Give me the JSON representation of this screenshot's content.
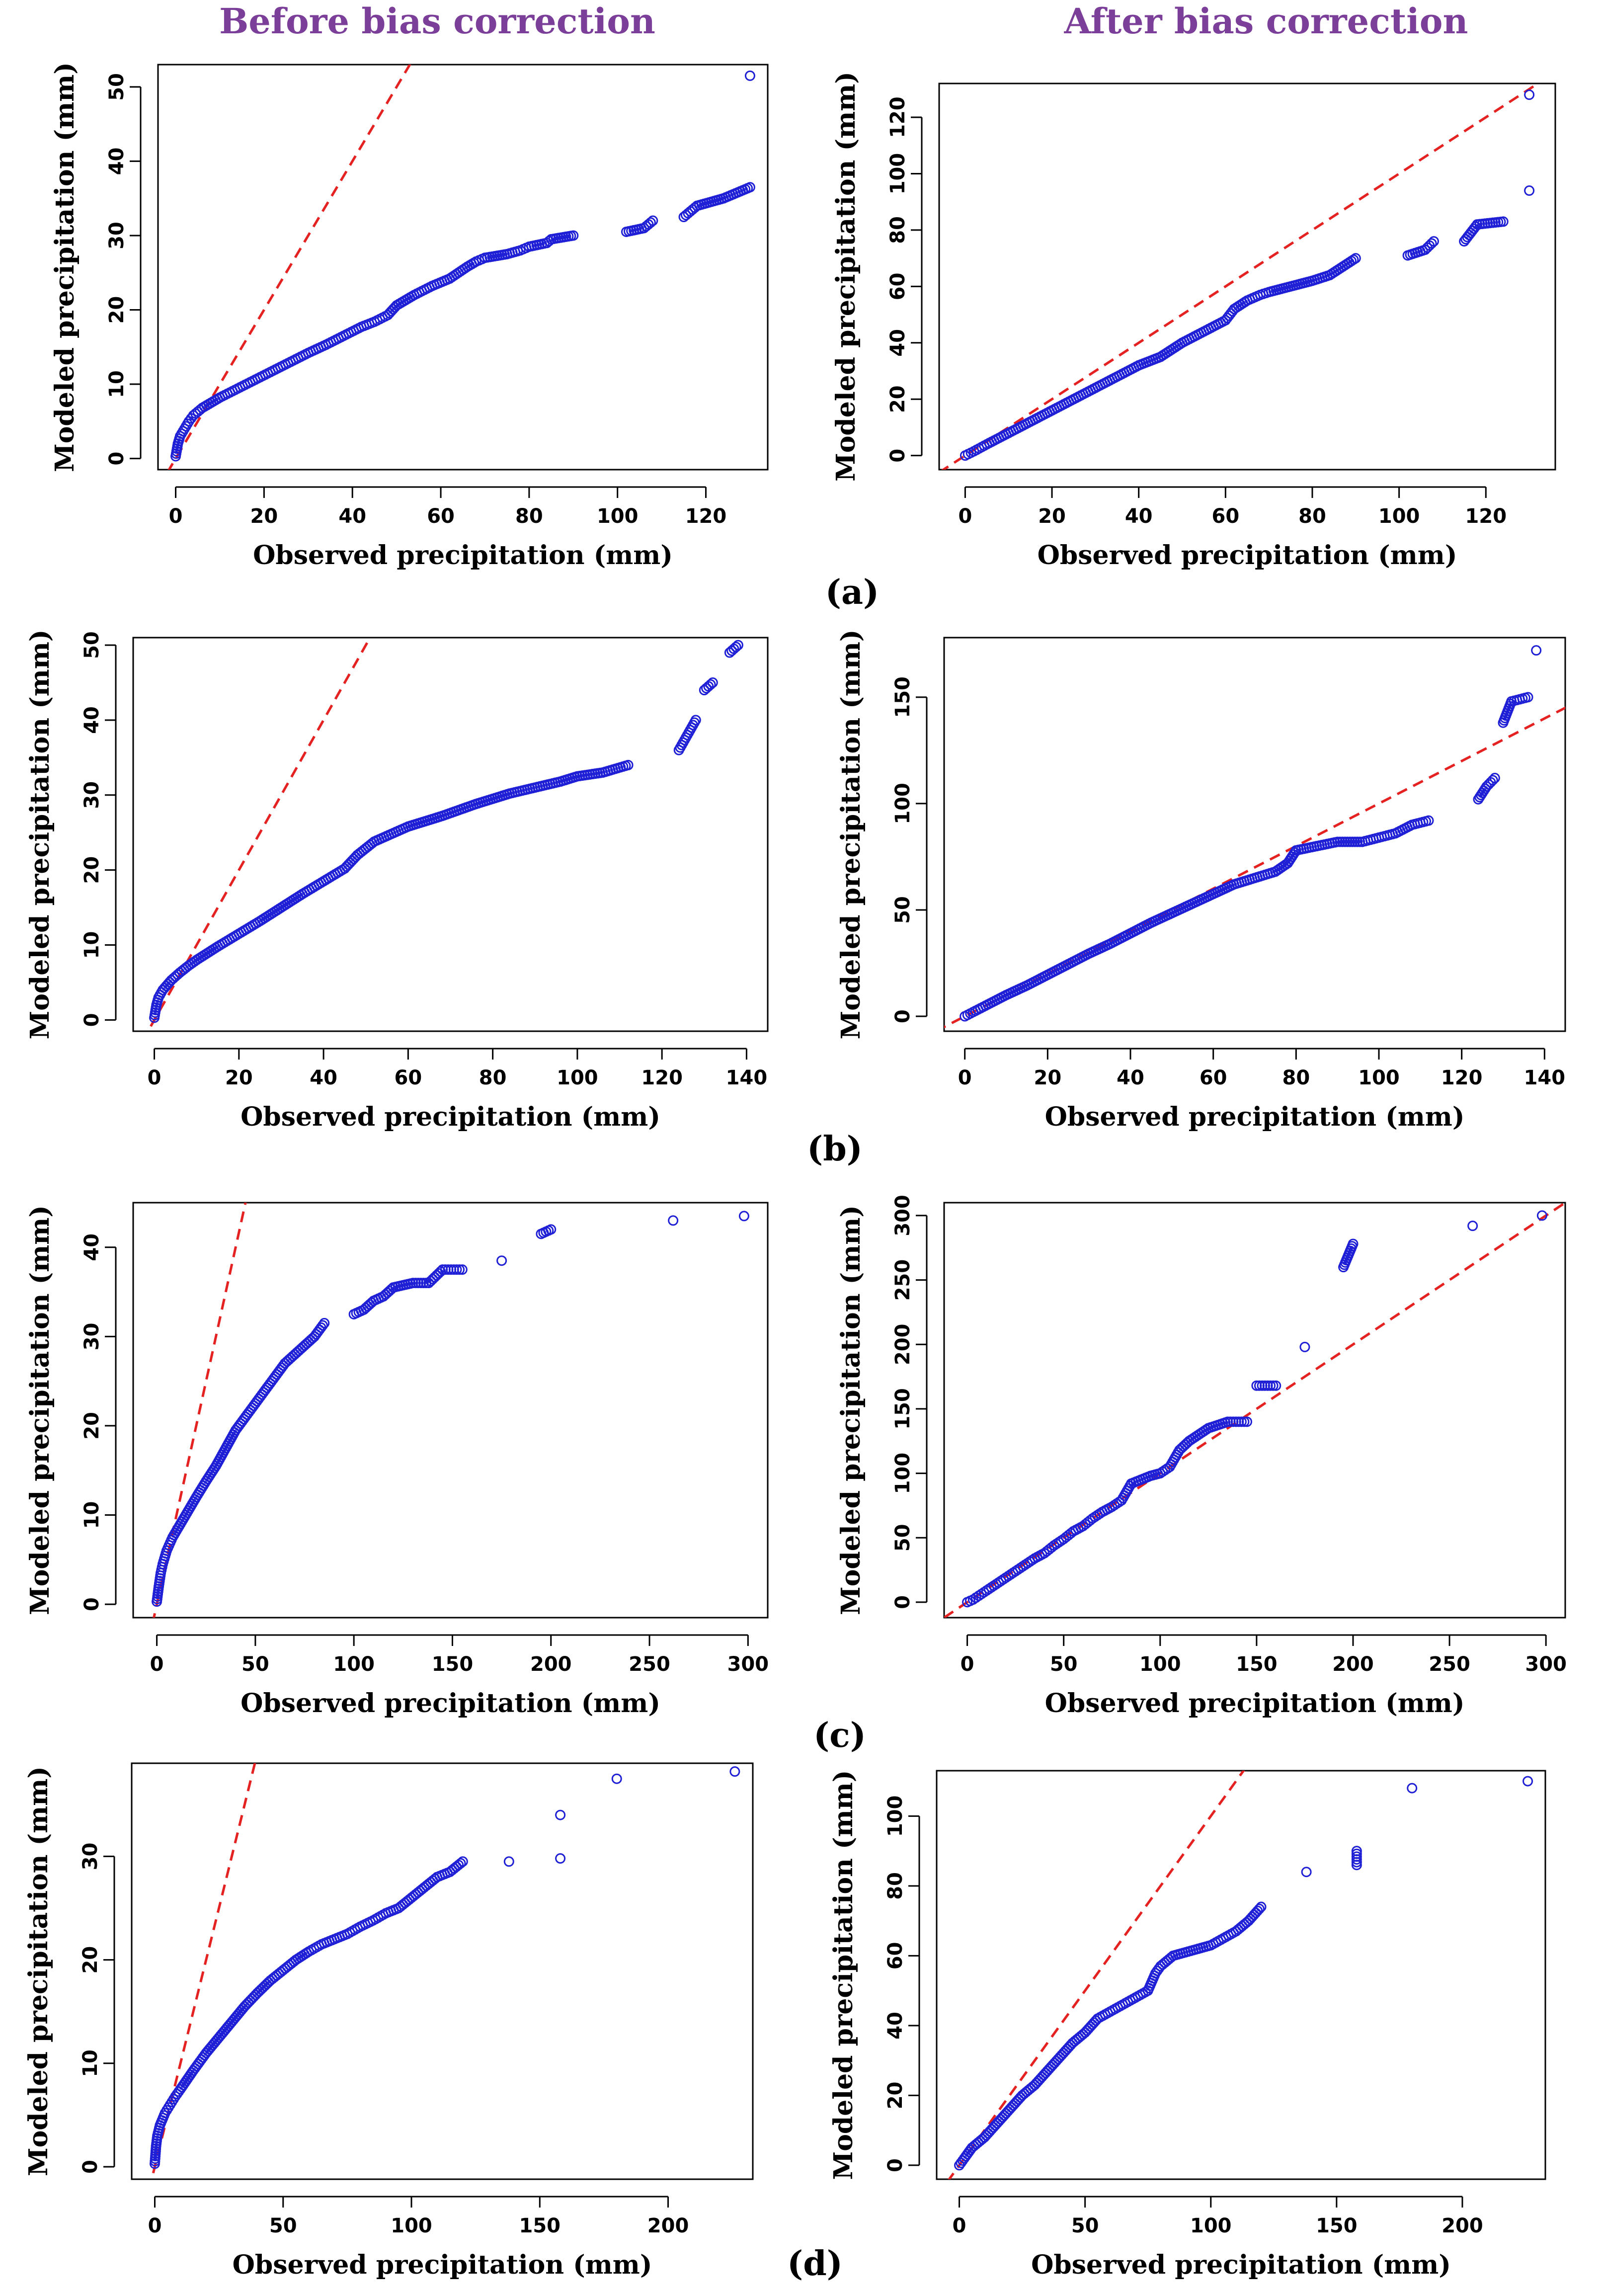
{
  "headers": {
    "left": "Before bias correction",
    "right": "After bias correction"
  },
  "panel_labels": [
    "(a)",
    "(b)",
    "(c)",
    "(d)"
  ],
  "colors": {
    "points": "#1f1fd6",
    "reference_line": "#e52222",
    "header": "#7b3f9a"
  },
  "chart_data": [
    {
      "id": "a-before",
      "type": "scatter",
      "xlabel": "Observed precipitation (mm)",
      "ylabel": "Modeled precipitation (mm)",
      "xlim": [
        -4,
        134
      ],
      "ylim": [
        -1.5,
        53
      ],
      "xticks": [
        0,
        20,
        40,
        60,
        80,
        100,
        120
      ],
      "yticks": [
        0,
        10,
        20,
        30,
        40,
        50
      ],
      "reference_line": "1:1",
      "x": [
        0,
        0.5,
        1,
        2,
        3,
        4,
        6,
        8,
        10,
        14,
        18,
        22,
        26,
        30,
        34,
        38,
        42,
        45,
        48,
        50,
        54,
        58,
        62,
        64,
        66,
        68,
        70,
        75,
        78,
        80,
        84,
        85,
        90,
        102,
        106,
        108,
        115,
        118,
        124,
        130,
        130
      ],
      "y": [
        0.3,
        2,
        3,
        4,
        5,
        5.8,
        6.8,
        7.5,
        8.2,
        9.4,
        10.6,
        11.8,
        13,
        14.2,
        15.3,
        16.5,
        17.7,
        18.4,
        19.3,
        20.6,
        22,
        23.2,
        24.2,
        25,
        25.8,
        26.5,
        27,
        27.5,
        28,
        28.5,
        29,
        29.5,
        30,
        30.5,
        31,
        32,
        32.5,
        34,
        35,
        36.5,
        51.5
      ]
    },
    {
      "id": "a-after",
      "type": "scatter",
      "xlabel": "Observed precipitation (mm)",
      "ylabel": "Modeled precipitation (mm)",
      "xlim": [
        -6,
        136
      ],
      "ylim": [
        -5,
        132
      ],
      "xticks": [
        0,
        20,
        40,
        60,
        80,
        100,
        120
      ],
      "yticks": [
        0,
        20,
        40,
        60,
        80,
        100,
        120
      ],
      "reference_line": "1:1",
      "x": [
        0,
        2,
        5,
        10,
        15,
        20,
        25,
        30,
        35,
        40,
        45,
        50,
        55,
        60,
        62,
        65,
        68,
        70,
        75,
        80,
        84,
        86,
        90,
        102,
        106,
        108,
        115,
        118,
        124,
        130,
        130
      ],
      "y": [
        0,
        1.5,
        4,
        8,
        12,
        16,
        20,
        24,
        28,
        32,
        35,
        40,
        44,
        48,
        52,
        55,
        57,
        58,
        60,
        62,
        64,
        66,
        70,
        71,
        73,
        76,
        76,
        82,
        83,
        94,
        128
      ]
    },
    {
      "id": "b-before",
      "type": "scatter",
      "xlabel": "Observed precipitation (mm)",
      "ylabel": "Modeled precipitation (mm)",
      "xlim": [
        -5,
        145
      ],
      "ylim": [
        -1.5,
        51
      ],
      "xticks": [
        0,
        20,
        40,
        60,
        80,
        100,
        120,
        140
      ],
      "yticks": [
        0,
        10,
        20,
        30,
        40,
        50
      ],
      "reference_line": "1:1",
      "x": [
        0,
        0.5,
        1,
        2,
        4,
        6,
        8,
        10,
        15,
        20,
        25,
        30,
        35,
        40,
        45,
        48,
        52,
        56,
        60,
        64,
        68,
        72,
        76,
        80,
        84,
        90,
        96,
        100,
        106,
        112,
        124,
        126,
        128,
        130,
        132,
        136,
        138
      ],
      "y": [
        0.3,
        2,
        3,
        4,
        5.3,
        6.3,
        7.2,
        8,
        9.8,
        11.5,
        13.2,
        15,
        16.8,
        18.5,
        20.2,
        22,
        23.8,
        24.8,
        25.8,
        26.5,
        27.2,
        28,
        28.8,
        29.5,
        30.2,
        31,
        31.8,
        32.5,
        33,
        34,
        36,
        38,
        40,
        44,
        45,
        49,
        50
      ]
    },
    {
      "id": "b-after",
      "type": "scatter",
      "xlabel": "Observed precipitation (mm)",
      "ylabel": "Modeled precipitation (mm)",
      "xlim": [
        -5,
        145
      ],
      "ylim": [
        -7,
        178
      ],
      "xticks": [
        0,
        20,
        40,
        60,
        80,
        100,
        120,
        140
      ],
      "yticks": [
        0,
        50,
        100,
        150
      ],
      "reference_line": "1:1",
      "x": [
        0,
        2,
        5,
        10,
        15,
        20,
        25,
        30,
        35,
        40,
        45,
        50,
        55,
        60,
        65,
        70,
        75,
        78,
        80,
        85,
        90,
        96,
        100,
        104,
        108,
        112,
        124,
        126,
        128,
        130,
        132,
        136,
        138
      ],
      "y": [
        0,
        2,
        5,
        10,
        14.5,
        19.5,
        24.5,
        29.5,
        34,
        39,
        44,
        48.5,
        53,
        57.5,
        62,
        65,
        68,
        72,
        78,
        80,
        82,
        82,
        84,
        86,
        90,
        92,
        102,
        108,
        112,
        138,
        148,
        150,
        172
      ]
    },
    {
      "id": "c-before",
      "type": "scatter",
      "xlabel": "Observed precipitation (mm)",
      "ylabel": "Modeled precipitation (mm)",
      "xlim": [
        -12,
        310
      ],
      "ylim": [
        -1.5,
        45
      ],
      "xticks": [
        0,
        50,
        100,
        150,
        200,
        250,
        300
      ],
      "yticks": [
        0,
        10,
        20,
        30,
        40
      ],
      "reference_line": "1:1",
      "x": [
        0,
        1,
        2,
        3,
        5,
        8,
        12,
        16,
        20,
        25,
        30,
        35,
        40,
        45,
        50,
        55,
        60,
        65,
        70,
        75,
        80,
        85,
        100,
        105,
        110,
        115,
        120,
        130,
        138,
        145,
        155,
        175,
        195,
        200,
        262,
        298
      ],
      "y": [
        0.3,
        2,
        3.5,
        4.5,
        6,
        7.5,
        9,
        10.5,
        12,
        13.8,
        15.5,
        17.5,
        19.5,
        21,
        22.5,
        24,
        25.5,
        27,
        28,
        29,
        30,
        31.5,
        32.5,
        33,
        34,
        34.5,
        35.5,
        36,
        36,
        37.5,
        37.5,
        38.5,
        41.5,
        42,
        43,
        43.5
      ]
    },
    {
      "id": "c-after",
      "type": "scatter",
      "xlabel": "Observed precipitation (mm)",
      "ylabel": "Modeled precipitation (mm)",
      "xlim": [
        -12,
        310
      ],
      "ylim": [
        -12,
        310
      ],
      "xticks": [
        0,
        50,
        100,
        150,
        200,
        250,
        300
      ],
      "yticks": [
        0,
        50,
        100,
        150,
        200,
        250,
        300
      ],
      "reference_line": "1:1",
      "x": [
        0,
        3,
        6,
        10,
        15,
        20,
        25,
        30,
        35,
        40,
        45,
        50,
        55,
        60,
        65,
        70,
        75,
        80,
        85,
        95,
        100,
        105,
        110,
        115,
        125,
        135,
        145,
        150,
        160,
        175,
        195,
        200,
        262,
        298
      ],
      "y": [
        0,
        2,
        5,
        9,
        14,
        19,
        24,
        29,
        34,
        38,
        44,
        49,
        55,
        59,
        65,
        70,
        74,
        79,
        92,
        98,
        100,
        105,
        118,
        125,
        135,
        140,
        140,
        168,
        168,
        198,
        260,
        278,
        292,
        300
      ]
    },
    {
      "id": "d-before",
      "type": "scatter",
      "xlabel": "Observed precipitation (mm)",
      "ylabel": "Modeled precipitation (mm)",
      "xlim": [
        -9,
        233
      ],
      "ylim": [
        -1.2,
        39
      ],
      "xticks": [
        0,
        50,
        100,
        150,
        200
      ],
      "yticks": [
        0,
        10,
        20,
        30
      ],
      "reference_line": "1:1",
      "x": [
        0,
        0.5,
        1,
        2,
        4,
        6,
        8,
        10,
        15,
        20,
        25,
        30,
        35,
        40,
        45,
        50,
        55,
        60,
        65,
        70,
        75,
        80,
        85,
        90,
        95,
        100,
        105,
        110,
        115,
        120,
        138,
        158,
        158,
        180,
        226
      ],
      "y": [
        0.3,
        2,
        3,
        4,
        5.2,
        6,
        6.8,
        7.5,
        9.3,
        11,
        12.5,
        14,
        15.5,
        16.8,
        18,
        19,
        20,
        20.8,
        21.5,
        22,
        22.5,
        23.2,
        23.8,
        24.5,
        25,
        26,
        27,
        28,
        28.5,
        29.5,
        29.5,
        29.8,
        34,
        37.5,
        38.2
      ]
    },
    {
      "id": "d-after",
      "type": "scatter",
      "xlabel": "Observed precipitation (mm)",
      "ylabel": "Modeled precipitation (mm)",
      "xlim": [
        -9,
        233
      ],
      "ylim": [
        -4,
        113
      ],
      "xticks": [
        0,
        50,
        100,
        150,
        200
      ],
      "yticks": [
        0,
        20,
        40,
        60,
        80,
        100
      ],
      "reference_line": "1:1",
      "x": [
        0,
        2,
        5,
        10,
        15,
        20,
        25,
        30,
        35,
        40,
        45,
        50,
        55,
        60,
        65,
        70,
        75,
        78,
        80,
        85,
        90,
        95,
        100,
        105,
        110,
        115,
        120,
        138,
        158,
        158,
        180,
        226
      ],
      "y": [
        0,
        2,
        5,
        8,
        12,
        16,
        20,
        23,
        27,
        31,
        35,
        38,
        42,
        44,
        46,
        48,
        50,
        55,
        57,
        60,
        61,
        62,
        63,
        65,
        67,
        70,
        74,
        84,
        86,
        90,
        108,
        110
      ]
    }
  ]
}
